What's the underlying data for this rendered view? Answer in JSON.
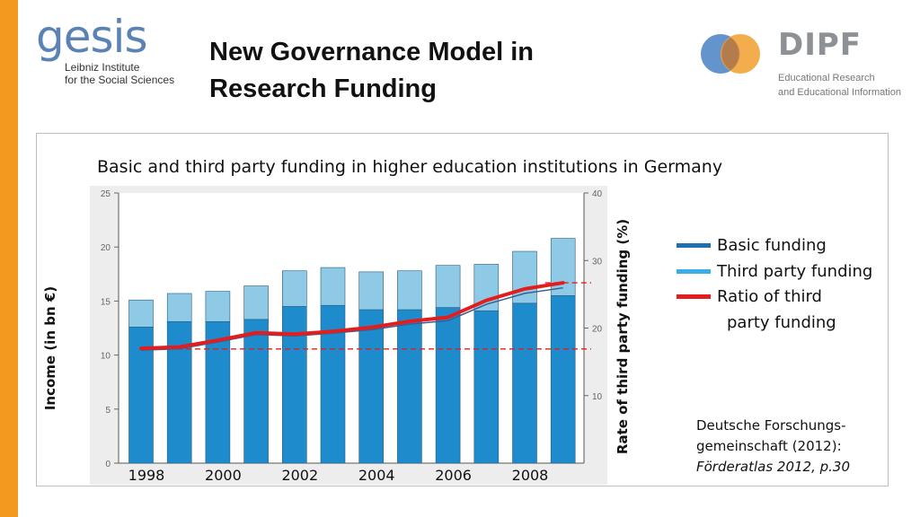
{
  "header": {
    "title_line1": "New Governance Model in",
    "title_line2": "Research Funding"
  },
  "logos": {
    "gesis": {
      "word": "gesis",
      "line1": "Leibniz Institute",
      "line2": "for the Social Sciences"
    },
    "dipf": {
      "word": "DIPF",
      "line1": "Educational Research",
      "line2": "and Educational Information"
    }
  },
  "legend": {
    "basic": {
      "label": "Basic funding",
      "color": "#1e6fb0"
    },
    "third": {
      "label": "Third party funding",
      "color": "#3aaee6"
    },
    "ratio_line1": "Ratio of third",
    "ratio_line2": "party funding",
    "ratio_color": "#e31d1d"
  },
  "source": {
    "line1": "Deutsche Forschungs-",
    "line2": "gemeinschaft (2012):",
    "line3": "Förderatlas 2012, p.30"
  },
  "chart_data": {
    "type": "bar",
    "title": "Basic and third party funding in higher education institutions in Germany",
    "ylabel": "Income (in bn €)",
    "y2label": "Rate of third party funding (%)",
    "ylim": [
      0,
      25
    ],
    "y2lim": [
      0,
      40
    ],
    "yticks": [
      "0",
      "5",
      "10",
      "15",
      "20",
      "25"
    ],
    "y2ticks": [
      "10",
      "20",
      "30",
      "40"
    ],
    "xlabels": [
      "1998",
      "2000",
      "2002",
      "2004",
      "2006",
      "2008"
    ],
    "categories": [
      "1998",
      "1999",
      "2000",
      "2001",
      "2002",
      "2003",
      "2004",
      "2005",
      "2006",
      "2007",
      "2008",
      "2009"
    ],
    "stacked": true,
    "series": [
      {
        "name": "Basic funding",
        "color": "#1e8ccc",
        "values": [
          12.6,
          13.1,
          13.1,
          13.3,
          14.5,
          14.6,
          14.2,
          14.2,
          14.4,
          14.1,
          14.8,
          15.5
        ]
      },
      {
        "name": "Third party funding",
        "color": "#8ecae6",
        "values": [
          2.5,
          2.6,
          2.8,
          3.1,
          3.3,
          3.5,
          3.5,
          3.6,
          3.9,
          4.3,
          4.8,
          5.3
        ]
      }
    ],
    "ratio": {
      "name": "Ratio of third party funding",
      "color": "#e31d1d",
      "values": [
        17,
        17.2,
        18.2,
        19.3,
        19.1,
        19.5,
        20.1,
        21,
        21.6,
        24.1,
        25.8,
        26.7
      ]
    },
    "reference_lines_pct": [
      16.9,
      26.7
    ],
    "grid": false
  }
}
